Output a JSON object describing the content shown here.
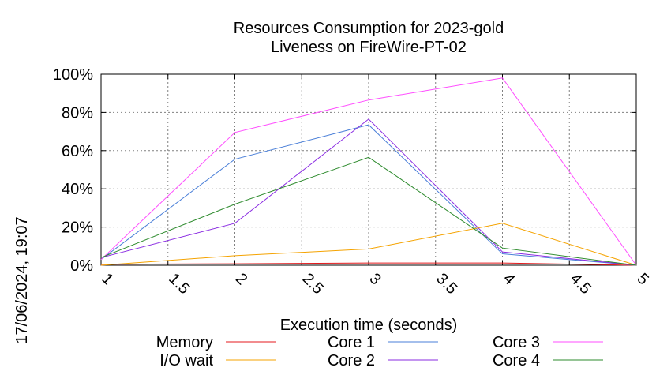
{
  "chart_data": {
    "type": "line",
    "title": "Resources Consumption for 2023-gold",
    "subtitle": "Liveness on FireWire-PT-02",
    "xlabel": "Execution time (seconds)",
    "ylabel": "",
    "side_label": "17/06/2024, 19:07",
    "xlim": [
      1,
      5
    ],
    "ylim": [
      0,
      100
    ],
    "x_ticks": [
      {
        "value": 1,
        "label": "1"
      },
      {
        "value": 1.5,
        "label": "1.5"
      },
      {
        "value": 2,
        "label": "2"
      },
      {
        "value": 2.5,
        "label": "2.5"
      },
      {
        "value": 3,
        "label": "3"
      },
      {
        "value": 3.5,
        "label": "3.5"
      },
      {
        "value": 4,
        "label": "4"
      },
      {
        "value": 4.5,
        "label": "4.5"
      },
      {
        "value": 5,
        "label": "5"
      }
    ],
    "y_ticks": [
      {
        "value": 0,
        "label": "0%"
      },
      {
        "value": 20,
        "label": "20%"
      },
      {
        "value": 40,
        "label": "40%"
      },
      {
        "value": 60,
        "label": "60%"
      },
      {
        "value": 80,
        "label": "80%"
      },
      {
        "value": 100,
        "label": "100%"
      }
    ],
    "grid": true,
    "legend_position": "bottom",
    "x": [
      1,
      2,
      3,
      4,
      5
    ],
    "series": [
      {
        "name": "Memory",
        "color": "#e41a1c",
        "values": [
          0.5,
          0.8,
          1.2,
          1.2,
          0
        ]
      },
      {
        "name": "Core 1",
        "color": "#4a7fd8",
        "values": [
          3,
          55.5,
          73.5,
          6,
          0
        ]
      },
      {
        "name": "Core 3",
        "color": "#ff4dff",
        "values": [
          3,
          69.5,
          86.5,
          98,
          0
        ]
      },
      {
        "name": "I/O wait",
        "color": "#f5a300",
        "values": [
          0,
          5,
          8.5,
          22,
          0
        ]
      },
      {
        "name": "Core 2",
        "color": "#8a2be2",
        "values": [
          4,
          22,
          76.5,
          7,
          0
        ]
      },
      {
        "name": "Core 4",
        "color": "#2e8b2e",
        "values": [
          4,
          32,
          56.5,
          9,
          0
        ]
      }
    ]
  }
}
